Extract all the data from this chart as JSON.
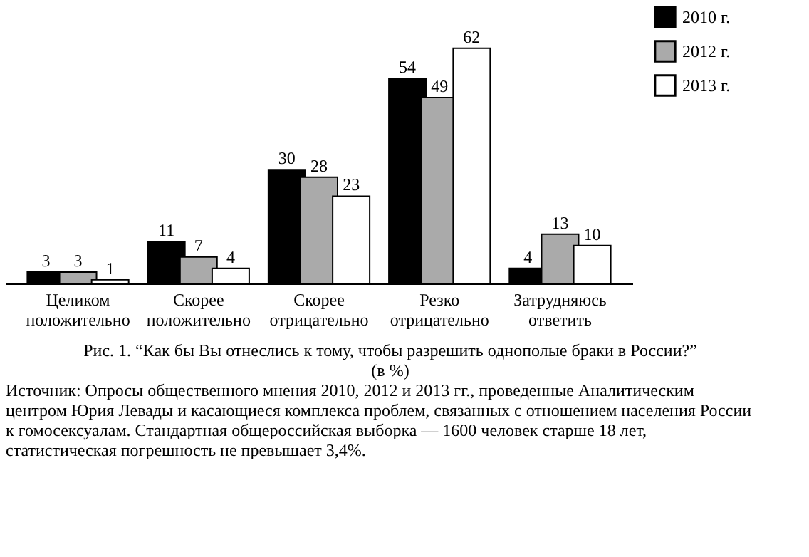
{
  "chart_data": {
    "type": "bar",
    "title": "Рис. 1. “Как бы Вы отнеслись к тому, чтобы разрешить однополые браки в России?” (в %)",
    "categories": [
      "Целиком положительно",
      "Скорее положительно",
      "Скорее отрицательно",
      "Резко отрицательно",
      "Затрудняюсь ответить"
    ],
    "series": [
      {
        "name": "2010 г.",
        "color": "#000000",
        "values": [
          3,
          11,
          30,
          54,
          4
        ]
      },
      {
        "name": "2012 г.",
        "color": "#aaaaaa",
        "values": [
          3,
          7,
          28,
          49,
          13
        ]
      },
      {
        "name": "2013 г.",
        "color": "#ffffff",
        "values": [
          1,
          4,
          23,
          62,
          10
        ]
      }
    ],
    "data_labels": true,
    "legend": "top right",
    "grid": false,
    "annotations": [
      "Источник: Опросы общественного мнения 2010, 2012 и 2013 гг., проведенные Аналитическим центром Юрия Левады и касающиеся комплекса проблем, связанных с отношением населения России к гомосексуалам. Стандартная общероссийская выборка — 1600 человек старше 18 лет, статистическая погрешность не превышает 3,4%."
    ]
  }
}
